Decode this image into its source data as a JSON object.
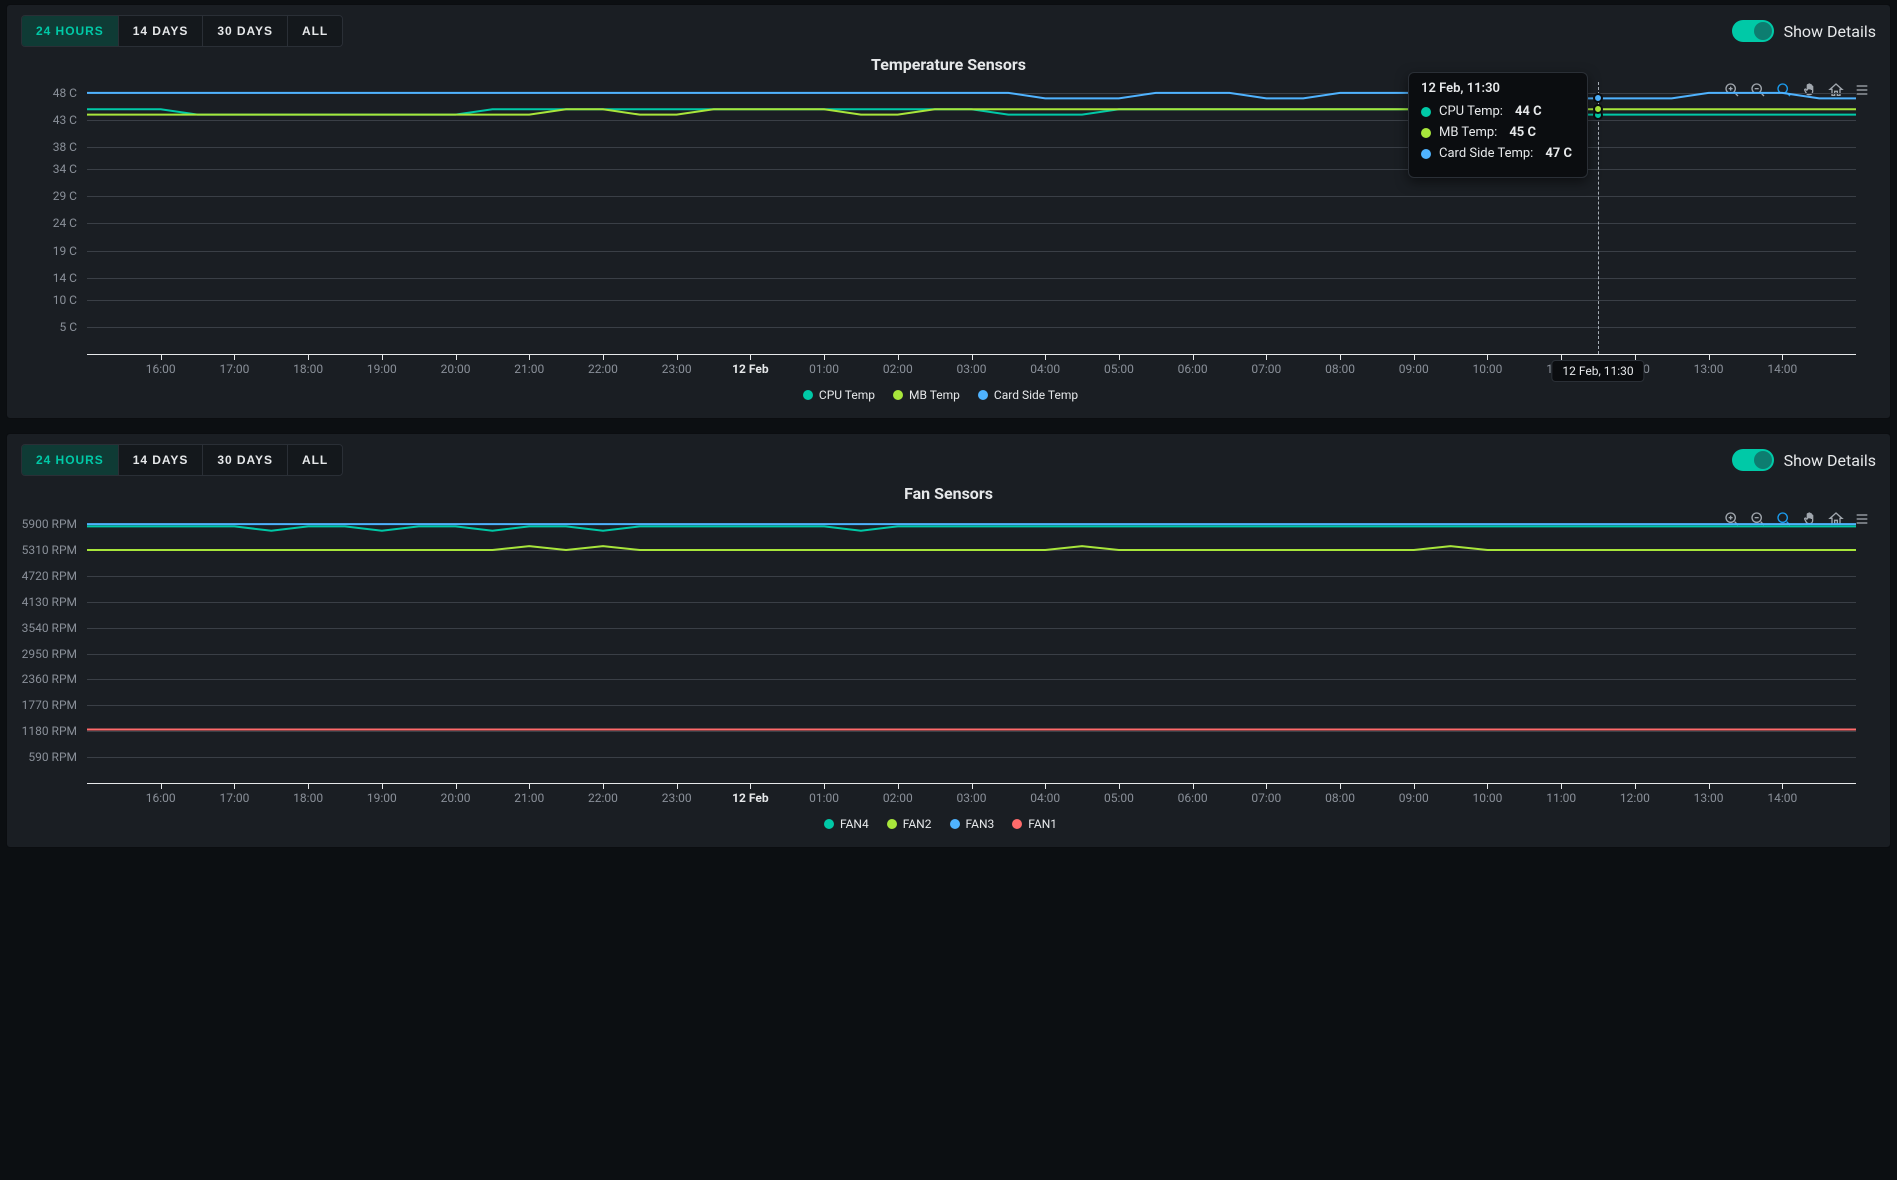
{
  "colors": {
    "teal": "#00c9a7",
    "lime": "#a8e63b",
    "blue": "#4fb3ff",
    "coral": "#ff6b6b",
    "grid": "#3a3f46",
    "axis": "#e6e8ea",
    "muted": "#8a9099",
    "tooltip_bg": "#0b0d10"
  },
  "range_buttons": [
    "24 Hours",
    "14 Days",
    "30 Days",
    "All"
  ],
  "active_range_index": 0,
  "details_toggle_label": "Show Details",
  "details_toggle_on": true,
  "toolbar_icons": [
    "zoom-in",
    "zoom-out",
    "zoom-select",
    "pan",
    "home",
    "menu"
  ],
  "toolbar_active_index": 2,
  "x_axis": {
    "ticks": [
      "16:00",
      "17:00",
      "18:00",
      "19:00",
      "20:00",
      "21:00",
      "22:00",
      "23:00",
      "12 Feb",
      "01:00",
      "02:00",
      "03:00",
      "04:00",
      "05:00",
      "06:00",
      "07:00",
      "08:00",
      "09:00",
      "10:00",
      "11:00",
      "12:00",
      "13:00",
      "14:00"
    ],
    "bold_index": 8,
    "extra_minor_before": 1,
    "extra_minor_after": 1
  },
  "charts": {
    "temperature": {
      "title": "Temperature Sensors",
      "unit_suffix": " C",
      "y_ticks": [
        5,
        10,
        14,
        19,
        24,
        29,
        34,
        38,
        43,
        48
      ],
      "y_min": 0,
      "y_max": 50,
      "grid_on": true,
      "series": [
        {
          "name": "CPU Temp",
          "color_key": "teal",
          "data": [
            45,
            45,
            45,
            44,
            44,
            44,
            44,
            44,
            44,
            44,
            44,
            45,
            45,
            45,
            45,
            45,
            45,
            45,
            45,
            45,
            45,
            45,
            45,
            45,
            45,
            44,
            44,
            44,
            45,
            45,
            45,
            45,
            45,
            45,
            45,
            45,
            45,
            44,
            44,
            44,
            44,
            44,
            44,
            44,
            44,
            44,
            44,
            44,
            44
          ]
        },
        {
          "name": "MB Temp",
          "color_key": "lime",
          "data": [
            44,
            44,
            44,
            44,
            44,
            44,
            44,
            44,
            44,
            44,
            44,
            44,
            44,
            45,
            45,
            44,
            44,
            45,
            45,
            45,
            45,
            44,
            44,
            45,
            45,
            45,
            45,
            45,
            45,
            45,
            45,
            45,
            45,
            45,
            45,
            45,
            45,
            45,
            45,
            45,
            45,
            45,
            45,
            45,
            45,
            45,
            45,
            45,
            45
          ]
        },
        {
          "name": "Card Side Temp",
          "color_key": "blue",
          "data": [
            48,
            48,
            48,
            48,
            48,
            48,
            48,
            48,
            48,
            48,
            48,
            48,
            48,
            48,
            48,
            48,
            48,
            48,
            48,
            48,
            48,
            48,
            48,
            48,
            48,
            48,
            47,
            47,
            47,
            48,
            48,
            48,
            47,
            47,
            48,
            48,
            48,
            48,
            48,
            48,
            47,
            47,
            47,
            47,
            48,
            48,
            48,
            47,
            47
          ]
        }
      ],
      "tooltip": {
        "visible": true,
        "x_index": 41,
        "title": "12 Feb, 11:30",
        "rows": [
          {
            "name": "CPU Temp:",
            "value": "44 C",
            "color_key": "teal"
          },
          {
            "name": "MB Temp:",
            "value": "45 C",
            "color_key": "lime"
          },
          {
            "name": "Card Side Temp:",
            "value": "47 C",
            "color_key": "blue"
          }
        ],
        "hover_label": "12 Feb, 11:30"
      }
    },
    "fan": {
      "title": "Fan Sensors",
      "unit_suffix": " RPM",
      "y_ticks": [
        590,
        1180,
        1770,
        2360,
        2950,
        3540,
        4130,
        4720,
        5310,
        5900
      ],
      "y_min": 0,
      "y_max": 6200,
      "grid_on": true,
      "series": [
        {
          "name": "FAN4",
          "color_key": "teal",
          "data": [
            5850,
            5850,
            5850,
            5850,
            5850,
            5750,
            5850,
            5850,
            5750,
            5850,
            5850,
            5750,
            5850,
            5850,
            5750,
            5850,
            5850,
            5850,
            5850,
            5850,
            5850,
            5750,
            5850,
            5850,
            5850,
            5850,
            5850,
            5850,
            5850,
            5850,
            5850,
            5850,
            5850,
            5850,
            5850,
            5850,
            5850,
            5850,
            5850,
            5850,
            5850,
            5850,
            5850,
            5850,
            5850,
            5850,
            5850,
            5850,
            5850
          ]
        },
        {
          "name": "FAN2",
          "color_key": "lime",
          "data": [
            5310,
            5310,
            5310,
            5310,
            5310,
            5310,
            5310,
            5310,
            5310,
            5310,
            5310,
            5310,
            5400,
            5310,
            5400,
            5310,
            5310,
            5310,
            5310,
            5310,
            5310,
            5310,
            5310,
            5310,
            5310,
            5310,
            5310,
            5400,
            5310,
            5310,
            5310,
            5310,
            5310,
            5310,
            5310,
            5310,
            5310,
            5400,
            5310,
            5310,
            5310,
            5310,
            5310,
            5310,
            5310,
            5310,
            5310,
            5310,
            5310
          ]
        },
        {
          "name": "FAN3",
          "color_key": "blue",
          "data": [
            5900,
            5900,
            5900,
            5900,
            5900,
            5900,
            5900,
            5900,
            5900,
            5900,
            5900,
            5900,
            5900,
            5900,
            5900,
            5900,
            5900,
            5900,
            5900,
            5900,
            5900,
            5900,
            5900,
            5900,
            5900,
            5900,
            5900,
            5900,
            5900,
            5900,
            5900,
            5900,
            5900,
            5900,
            5900,
            5900,
            5900,
            5900,
            5900,
            5900,
            5900,
            5900,
            5900,
            5900,
            5900,
            5900,
            5900,
            5900,
            5900
          ]
        },
        {
          "name": "FAN1",
          "color_key": "coral",
          "data": [
            1220,
            1220,
            1220,
            1220,
            1220,
            1220,
            1220,
            1220,
            1220,
            1220,
            1220,
            1220,
            1220,
            1220,
            1220,
            1220,
            1220,
            1220,
            1220,
            1220,
            1220,
            1220,
            1220,
            1220,
            1220,
            1220,
            1220,
            1220,
            1220,
            1220,
            1220,
            1220,
            1220,
            1220,
            1220,
            1220,
            1220,
            1220,
            1220,
            1220,
            1220,
            1220,
            1220,
            1220,
            1220,
            1220,
            1220,
            1220,
            1220
          ]
        }
      ],
      "tooltip": {
        "visible": false
      }
    }
  }
}
